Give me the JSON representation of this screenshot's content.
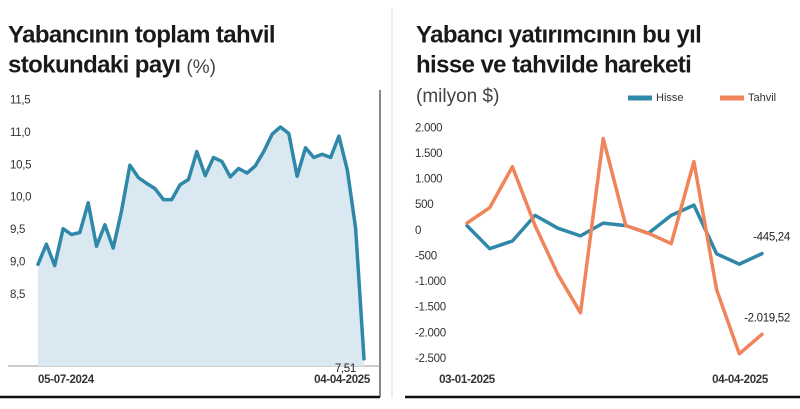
{
  "chart_data": [
    {
      "type": "area",
      "title": [
        "Yabancının toplam tahvil",
        "stokundaki payı"
      ],
      "subtitle": "(%)",
      "categories": [
        "05-07-2024",
        null,
        null,
        null,
        null,
        null,
        null,
        null,
        null,
        null,
        null,
        null,
        null,
        null,
        null,
        null,
        null,
        null,
        null,
        null,
        null,
        null,
        null,
        null,
        null,
        null,
        null,
        null,
        null,
        null,
        null,
        null,
        null,
        null,
        null,
        null,
        null,
        null,
        null,
        "04-04-2025"
      ],
      "series": [
        {
          "name": null,
          "color": "#2f88a8",
          "fill": "#d9e8f1",
          "values": [
            8.97,
            9.28,
            8.95,
            9.52,
            9.43,
            9.46,
            9.92,
            9.25,
            9.58,
            9.22,
            9.8,
            10.5,
            10.31,
            10.22,
            10.14,
            9.97,
            9.97,
            10.2,
            10.28,
            10.71,
            10.34,
            10.62,
            10.56,
            10.32,
            10.45,
            10.38,
            10.49,
            10.71,
            10.98,
            11.09,
            10.99,
            10.33,
            10.77,
            10.62,
            10.67,
            10.62,
            10.95,
            10.43,
            9.53,
            7.51
          ],
          "value_labels": [
            null,
            null,
            null,
            null,
            null,
            null,
            null,
            null,
            null,
            null,
            null,
            null,
            null,
            null,
            null,
            null,
            null,
            null,
            null,
            null,
            null,
            null,
            null,
            null,
            null,
            null,
            null,
            null,
            null,
            null,
            null,
            null,
            null,
            null,
            null,
            null,
            null,
            null,
            null,
            "7,51"
          ]
        }
      ],
      "ylim": [
        7.4,
        11.6
      ],
      "yticks": [
        {
          "value": 11.5,
          "label": "11,5"
        },
        {
          "value": 11.0,
          "label": "11,0"
        },
        {
          "value": 10.5,
          "label": "10,5"
        },
        {
          "value": 10.0,
          "label": "10,0"
        },
        {
          "value": 9.5,
          "label": "9,5"
        },
        {
          "value": 9.0,
          "label": "9,0"
        },
        {
          "value": 8.5,
          "label": "8,5"
        }
      ]
    },
    {
      "type": "line",
      "title": [
        "Yabancı yatırımcının bu yıl",
        "hisse ve tahvilde hareketi"
      ],
      "subtitle": "(milyon $)",
      "categories": [
        "03-01-2025",
        null,
        null,
        null,
        null,
        null,
        null,
        null,
        null,
        null,
        null,
        null,
        null,
        "04-04-2025"
      ],
      "series": [
        {
          "name": "Hisse",
          "color": "#2f88a8",
          "values": [
            100,
            -350,
            -200,
            300,
            50,
            -100,
            150,
            100,
            -50,
            300,
            500,
            -450,
            -650,
            -445.24
          ],
          "value_labels": [
            null,
            null,
            null,
            null,
            null,
            null,
            null,
            null,
            null,
            null,
            null,
            null,
            null,
            "-445,24"
          ]
        },
        {
          "name": "Tahvil",
          "color": "#f0845a",
          "values": [
            150,
            450,
            1250,
            100,
            -850,
            -1600,
            1800,
            100,
            -50,
            -250,
            1350,
            -1150,
            -2400,
            -2019.52
          ],
          "value_labels": [
            null,
            null,
            null,
            null,
            null,
            null,
            null,
            null,
            null,
            null,
            null,
            null,
            null,
            "-2.019,52"
          ]
        }
      ],
      "ylim": [
        -2600,
        2200
      ],
      "yticks": [
        {
          "value": 2000,
          "label": "2.000"
        },
        {
          "value": 1500,
          "label": "1.500"
        },
        {
          "value": 1000,
          "label": "1.000"
        },
        {
          "value": 500,
          "label": "500"
        },
        0,
        {
          "value": -500,
          "label": "-500"
        },
        {
          "value": -1000,
          "label": "-1.000"
        },
        {
          "value": -1500,
          "label": "-1.500"
        },
        {
          "value": -2000,
          "label": "-2.000"
        },
        {
          "value": -2500,
          "label": "-2.500"
        }
      ]
    }
  ]
}
